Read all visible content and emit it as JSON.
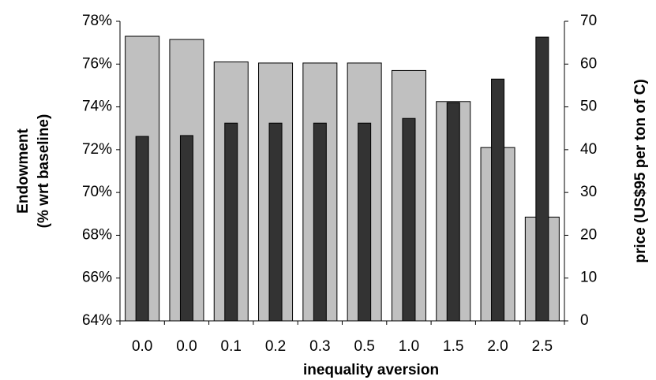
{
  "chart_data": {
    "type": "bar",
    "categories": [
      "0.0",
      "0.0",
      "0.1",
      "0.2",
      "0.3",
      "0.5",
      "1.0",
      "1.5",
      "2.0",
      "2.5"
    ],
    "series": [
      {
        "color": "#c0c0c0",
        "values": [
          77.3,
          77.15,
          76.1,
          76.05,
          76.05,
          76.05,
          75.7,
          74.25,
          72.1,
          68.85
        ]
      },
      {
        "color": "#333333",
        "axis": "y2",
        "values": [
          43.1,
          43.3,
          46.2,
          46.2,
          46.2,
          46.2,
          47.3,
          51,
          56.5,
          66.3
        ]
      }
    ],
    "xlabel": "inequality aversion",
    "ylabel": [
      "Endowment",
      "(% wrt baseline)"
    ],
    "y2label": "price (US$95 per ton of C)",
    "ylim": [
      64,
      78
    ],
    "yticks": [
      {
        "value": 64,
        "label": "64%"
      },
      {
        "value": 66,
        "label": "66%"
      },
      {
        "value": 68,
        "label": "68%"
      },
      {
        "value": 70,
        "label": "70%"
      },
      {
        "value": 72,
        "label": "72%"
      },
      {
        "value": 74,
        "label": "74%"
      },
      {
        "value": 76,
        "label": "76%"
      },
      {
        "value": 78,
        "label": "78%"
      }
    ],
    "y2lim": [
      0,
      70
    ],
    "y2ticks": [
      0,
      10,
      20,
      30,
      40,
      50,
      60,
      70
    ],
    "grid": false
  }
}
